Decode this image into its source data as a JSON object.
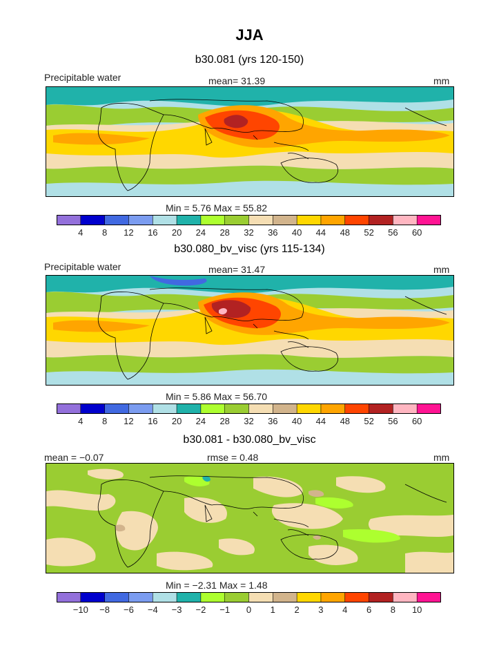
{
  "title": "JJA",
  "panels": [
    {
      "subtitle": "b30.081 (yrs 120-150)",
      "left_label": "Precipitable water",
      "center_label": "mean=   31.39",
      "right_label": "mm",
      "minmax": "Min =    5.76  Max =    55.82",
      "palette": "abs",
      "field_min": 5.76,
      "field_max": 55.82
    },
    {
      "subtitle": "b30.080_bv_visc (yrs 115-134)",
      "left_label": "Precipitable water",
      "center_label": "mean=   31.47",
      "right_label": "mm",
      "minmax": "Min =    5.86  Max =    56.70",
      "palette": "abs",
      "field_min": 5.86,
      "field_max": 56.7
    },
    {
      "subtitle": "b30.081 - b30.080_bv_visc",
      "left_label": "mean =   −0.07",
      "center_label": "rmse =    0.48",
      "right_label": "mm",
      "minmax": "Min =   −2.31  Max =    1.48",
      "palette": "diff",
      "field_min": -2.31,
      "field_max": 1.48
    }
  ],
  "colorbars": {
    "abs": {
      "colors": [
        "#9370db",
        "#0000cd",
        "#4169e1",
        "#7b9cf0",
        "#b0e0e6",
        "#20b2aa",
        "#adff2f",
        "#9acd32",
        "#f5deb3",
        "#d2b48c",
        "#ffd700",
        "#ffa500",
        "#ff4500",
        "#b22222",
        "#ffb6c1",
        "#ff1493"
      ],
      "labels": [
        "4",
        "8",
        "12",
        "16",
        "20",
        "24",
        "28",
        "32",
        "36",
        "40",
        "44",
        "48",
        "52",
        "56",
        "60"
      ]
    },
    "diff": {
      "colors": [
        "#9370db",
        "#0000cd",
        "#4169e1",
        "#7b9cf0",
        "#b0e0e6",
        "#20b2aa",
        "#adff2f",
        "#9acd32",
        "#f5deb3",
        "#d2b48c",
        "#ffd700",
        "#ffa500",
        "#ff4500",
        "#b22222",
        "#ffb6c1",
        "#ff1493"
      ],
      "labels": [
        "−10",
        "−8",
        "−6",
        "−4",
        "−3",
        "−2",
        "−1",
        "0",
        "1",
        "2",
        "3",
        "4",
        "6",
        "8",
        "10"
      ]
    }
  }
}
